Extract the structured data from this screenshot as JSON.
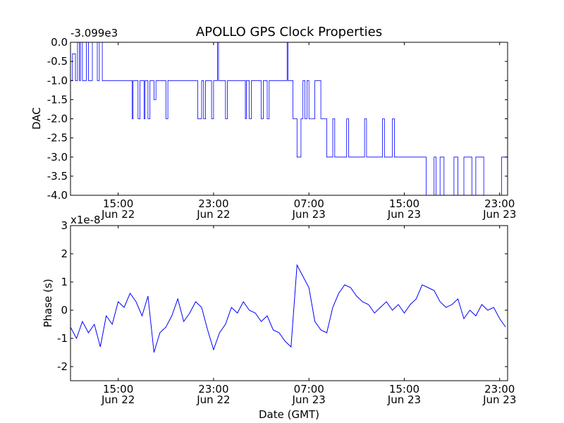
{
  "figure": {
    "title": "APOLLO GPS Clock Properties",
    "xlabel": "Date (GMT)",
    "trace_color": "#0000ff"
  },
  "chart_data": [
    {
      "type": "line",
      "name": "dac-panel",
      "ylabel": "DAC",
      "offset_label": "-3.099e3",
      "ylim": [
        -4.0,
        0.0
      ],
      "yticks": [
        0.0,
        -0.5,
        -1.0,
        -1.5,
        -2.0,
        -2.5,
        -3.0,
        -3.5,
        -4.0
      ],
      "ytick_labels": [
        "0.0",
        "-0.5",
        "-1.0",
        "-1.5",
        "-2.0",
        "-2.5",
        "-3.0",
        "-3.5",
        "-4.0"
      ],
      "xlim": [
        "2012-06-22 11:00",
        "2012-06-23 23:40"
      ],
      "xticks": [
        "2012-06-22 15:00",
        "2012-06-22 23:00",
        "2012-06-23 07:00",
        "2012-06-23 15:00",
        "2012-06-23 23:00"
      ],
      "xtick_labels": [
        [
          "15:00",
          "Jun 22"
        ],
        [
          "23:00",
          "Jun 22"
        ],
        [
          "07:00",
          "Jun 23"
        ],
        [
          "15:00",
          "Jun 23"
        ],
        [
          "23:00",
          "Jun 23"
        ]
      ],
      "series": [
        {
          "x": [
            "2012-06-22 11:00",
            "2012-06-22 11:10",
            "2012-06-22 11:25",
            "2012-06-22 11:35",
            "2012-06-22 11:45",
            "2012-06-22 11:50",
            "2012-06-22 12:00",
            "2012-06-22 12:20",
            "2012-06-22 12:30",
            "2012-06-22 12:50",
            "2012-06-22 13:15",
            "2012-06-22 13:25",
            "2012-06-22 13:40",
            "2012-06-22 16:10",
            "2012-06-22 16:15",
            "2012-06-22 16:40",
            "2012-06-22 16:50",
            "2012-06-22 17:10",
            "2012-06-22 17:15",
            "2012-06-22 17:30",
            "2012-06-22 17:40",
            "2012-06-22 18:00",
            "2012-06-22 18:10",
            "2012-06-22 19:00",
            "2012-06-22 19:10",
            "2012-06-22 21:40",
            "2012-06-22 22:00",
            "2012-06-22 22:10",
            "2012-06-22 22:20",
            "2012-06-22 22:50",
            "2012-06-22 23:00",
            "2012-06-22 23:20",
            "2012-06-22 23:25",
            "2012-06-23 00:00",
            "2012-06-23 00:10",
            "2012-06-23 01:40",
            "2012-06-23 01:45",
            "2012-06-23 02:00",
            "2012-06-23 02:10",
            "2012-06-23 03:00",
            "2012-06-23 03:10",
            "2012-06-23 03:30",
            "2012-06-23 03:40",
            "2012-06-23 05:10",
            "2012-06-23 05:15",
            "2012-06-23 05:40",
            "2012-06-23 06:00",
            "2012-06-23 06:20",
            "2012-06-23 06:30",
            "2012-06-23 06:40",
            "2012-06-23 06:50",
            "2012-06-23 07:00",
            "2012-06-23 07:30",
            "2012-06-23 08:00",
            "2012-06-23 08:30",
            "2012-06-23 09:00",
            "2012-06-23 09:10",
            "2012-06-23 10:10",
            "2012-06-23 10:20",
            "2012-06-23 11:40",
            "2012-06-23 11:50",
            "2012-06-23 13:10",
            "2012-06-23 13:20",
            "2012-06-23 14:00",
            "2012-06-23 14:10",
            "2012-06-23 16:50",
            "2012-06-23 17:30",
            "2012-06-23 17:40",
            "2012-06-23 18:00",
            "2012-06-23 18:20",
            "2012-06-23 19:10",
            "2012-06-23 19:30",
            "2012-06-23 20:00",
            "2012-06-23 20:40",
            "2012-06-23 21:00",
            "2012-06-23 21:40",
            "2012-06-23 23:10",
            "2012-06-23 23:40"
          ],
          "y": [
            -1.0,
            -0.3,
            -1.0,
            0.0,
            -1.0,
            0.0,
            -1.0,
            0.0,
            -1.0,
            0.0,
            -1.0,
            0.0,
            -1.0,
            -2.0,
            -1.0,
            -2.0,
            -1.0,
            -2.0,
            -1.0,
            -2.0,
            -1.0,
            -1.5,
            -1.0,
            -2.0,
            -1.0,
            -2.0,
            -1.0,
            -2.0,
            -1.0,
            -2.0,
            -1.0,
            0.0,
            -1.0,
            -2.0,
            -1.0,
            -2.0,
            -1.0,
            -2.0,
            -1.0,
            -2.0,
            -1.0,
            -2.0,
            -1.0,
            0.0,
            -1.0,
            -2.0,
            -3.0,
            -2.0,
            -1.0,
            -2.0,
            -1.0,
            -2.0,
            -1.0,
            -2.0,
            -3.0,
            -2.0,
            -3.0,
            -2.0,
            -3.0,
            -2.0,
            -3.0,
            -2.0,
            -3.0,
            -2.0,
            -3.0,
            -4.0,
            -3.0,
            -4.0,
            -3.0,
            -4.0,
            -3.0,
            -4.0,
            -3.0,
            -4.0,
            -3.0,
            -4.0,
            -3.0,
            -4.0
          ]
        }
      ]
    },
    {
      "type": "line",
      "name": "phase-panel",
      "ylabel": "Phase (s)",
      "offset_label": "x1e-8",
      "ylim": [
        -2.5,
        3.0
      ],
      "yticks": [
        -2,
        -1,
        0,
        1,
        2,
        3
      ],
      "ytick_labels": [
        "-2",
        "-1",
        "0",
        "1",
        "2",
        "3"
      ],
      "xlim": [
        "2012-06-22 11:00",
        "2012-06-23 23:40"
      ],
      "xticks": [
        "2012-06-22 15:00",
        "2012-06-22 23:00",
        "2012-06-23 07:00",
        "2012-06-23 15:00",
        "2012-06-23 23:00"
      ],
      "xtick_labels": [
        [
          "15:00",
          "Jun 22"
        ],
        [
          "23:00",
          "Jun 22"
        ],
        [
          "07:00",
          "Jun 23"
        ],
        [
          "15:00",
          "Jun 23"
        ],
        [
          "23:00",
          "Jun 23"
        ]
      ],
      "series": [
        {
          "x": [
            "2012-06-22 11:00",
            "2012-06-22 11:30",
            "2012-06-22 12:00",
            "2012-06-22 12:30",
            "2012-06-22 13:00",
            "2012-06-22 13:30",
            "2012-06-22 14:00",
            "2012-06-22 14:30",
            "2012-06-22 15:00",
            "2012-06-22 15:30",
            "2012-06-22 16:00",
            "2012-06-22 16:30",
            "2012-06-22 17:00",
            "2012-06-22 17:30",
            "2012-06-22 18:00",
            "2012-06-22 18:30",
            "2012-06-22 19:00",
            "2012-06-22 19:30",
            "2012-06-22 20:00",
            "2012-06-22 20:30",
            "2012-06-22 21:00",
            "2012-06-22 21:30",
            "2012-06-22 22:00",
            "2012-06-22 22:30",
            "2012-06-22 23:00",
            "2012-06-22 23:30",
            "2012-06-23 00:00",
            "2012-06-23 00:30",
            "2012-06-23 01:00",
            "2012-06-23 01:30",
            "2012-06-23 02:00",
            "2012-06-23 02:30",
            "2012-06-23 03:00",
            "2012-06-23 03:30",
            "2012-06-23 04:00",
            "2012-06-23 04:30",
            "2012-06-23 05:00",
            "2012-06-23 05:30",
            "2012-06-23 06:00",
            "2012-06-23 06:30",
            "2012-06-23 07:00",
            "2012-06-23 07:30",
            "2012-06-23 08:00",
            "2012-06-23 08:30",
            "2012-06-23 09:00",
            "2012-06-23 09:30",
            "2012-06-23 10:00",
            "2012-06-23 10:30",
            "2012-06-23 11:00",
            "2012-06-23 11:30",
            "2012-06-23 12:00",
            "2012-06-23 12:30",
            "2012-06-23 13:00",
            "2012-06-23 13:30",
            "2012-06-23 14:00",
            "2012-06-23 14:30",
            "2012-06-23 15:00",
            "2012-06-23 15:30",
            "2012-06-23 16:00",
            "2012-06-23 16:30",
            "2012-06-23 17:00",
            "2012-06-23 17:30",
            "2012-06-23 18:00",
            "2012-06-23 18:30",
            "2012-06-23 19:00",
            "2012-06-23 19:30",
            "2012-06-23 20:00",
            "2012-06-23 20:30",
            "2012-06-23 21:00",
            "2012-06-23 21:30",
            "2012-06-23 22:00",
            "2012-06-23 22:30",
            "2012-06-23 23:00",
            "2012-06-23 23:30"
          ],
          "y": [
            -0.6,
            -1.0,
            -0.4,
            -0.8,
            -0.5,
            -1.3,
            -0.2,
            -0.5,
            0.3,
            0.1,
            0.6,
            0.3,
            -0.2,
            0.5,
            -1.5,
            -0.8,
            -0.6,
            -0.2,
            0.4,
            -0.4,
            -0.1,
            0.3,
            0.1,
            -0.7,
            -1.4,
            -0.8,
            -0.5,
            0.1,
            -0.1,
            0.3,
            0.0,
            -0.1,
            -0.4,
            -0.2,
            -0.7,
            -0.8,
            -1.1,
            -1.3,
            1.6,
            1.2,
            0.8,
            -0.4,
            -0.7,
            -0.8,
            0.1,
            0.6,
            0.9,
            0.8,
            0.5,
            0.3,
            0.2,
            -0.1,
            0.1,
            0.3,
            0.0,
            0.2,
            -0.1,
            0.2,
            0.4,
            0.9,
            0.8,
            0.7,
            0.3,
            0.1,
            0.2,
            0.4,
            -0.3,
            0.0,
            -0.2,
            0.2,
            0.0,
            0.1,
            -0.3,
            -0.6
          ]
        }
      ]
    }
  ]
}
